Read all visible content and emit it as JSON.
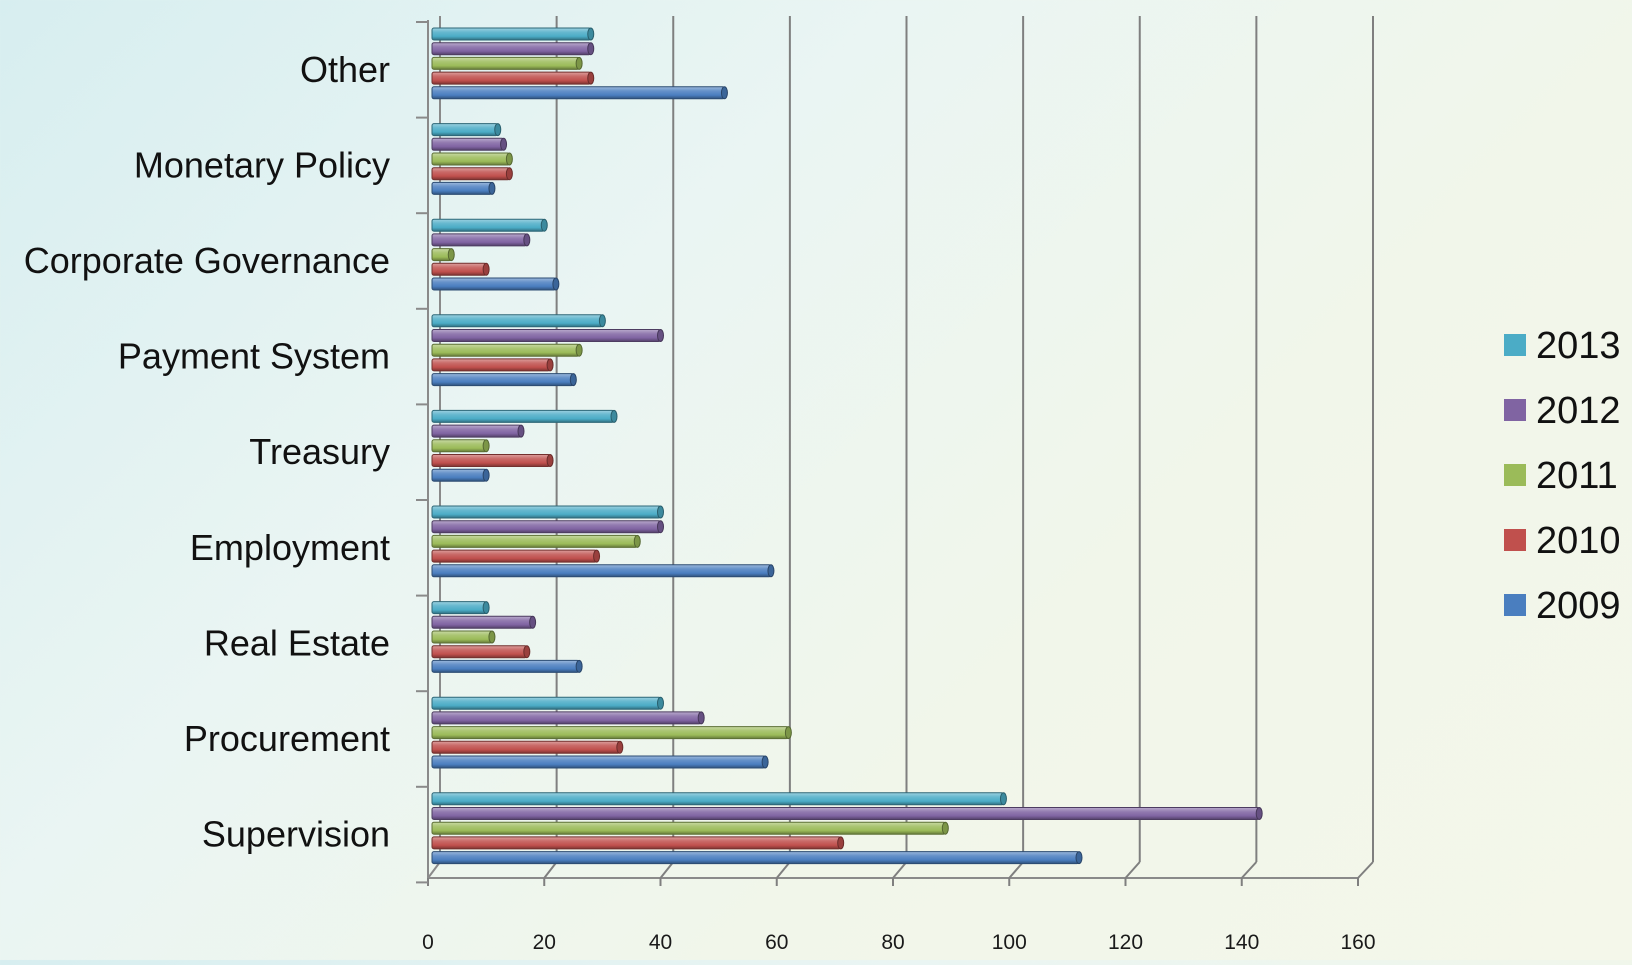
{
  "chart_data": {
    "type": "bar",
    "orientation": "horizontal",
    "title": "",
    "xlabel": "",
    "ylabel": "",
    "categories": [
      "Supervision",
      "Procurement",
      "Real Estate",
      "Employment",
      "Treasury",
      "Payment System",
      "Corporate Governance",
      "Monetary Policy",
      "Other"
    ],
    "series": [
      {
        "name": "2009",
        "color": "#4a7ebf",
        "values": [
          112,
          58,
          26,
          59,
          10,
          25,
          22,
          11,
          51
        ]
      },
      {
        "name": "2010",
        "color": "#c0504d",
        "values": [
          71,
          33,
          17,
          29,
          21,
          21,
          10,
          14,
          28
        ]
      },
      {
        "name": "2011",
        "color": "#9bbb59",
        "values": [
          89,
          62,
          11,
          36,
          10,
          26,
          4,
          14,
          26
        ]
      },
      {
        "name": "2012",
        "color": "#8064a2",
        "values": [
          143,
          47,
          18,
          40,
          16,
          40,
          17,
          13,
          28
        ]
      },
      {
        "name": "2013",
        "color": "#4bacc6",
        "values": [
          99,
          40,
          10,
          40,
          32,
          30,
          20,
          12,
          28
        ]
      }
    ],
    "xlim": [
      0,
      160
    ],
    "xticks": [
      "0",
      "20",
      "40",
      "60",
      "80",
      "100",
      "120",
      "140",
      "160"
    ],
    "grid": true,
    "legend_position": "right",
    "legend_order": [
      "2013",
      "2012",
      "2011",
      "2010",
      "2009"
    ]
  }
}
